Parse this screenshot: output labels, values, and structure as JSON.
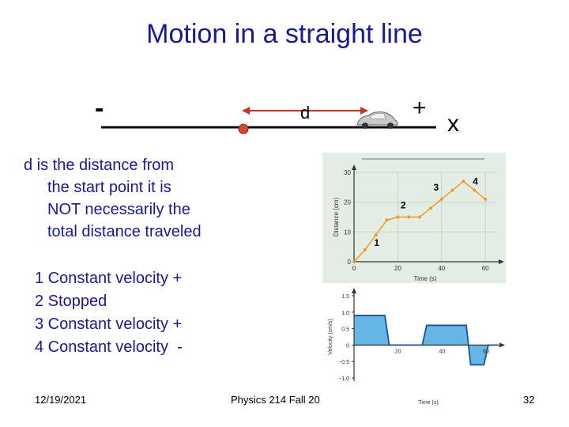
{
  "slide": {
    "title": "Motion in a straight line",
    "minus_sign": "-",
    "plus_sign": "+",
    "axis_label": "x",
    "displacement_label": "d",
    "description": [
      "d is the distance from",
      "the start point it is",
      "NOT necessarily the",
      "total distance traveled"
    ],
    "list": [
      "1 Constant velocity +",
      "2 Stopped",
      "3 Constant velocity +",
      "4 Constant velocity  -"
    ],
    "footer": {
      "date": "12/19/2021",
      "course": "Physics 214 Fall 20",
      "page": "32"
    }
  },
  "chart_data": [
    {
      "type": "line",
      "title": "",
      "xlabel": "Time (s)",
      "ylabel": "Distance (cm)",
      "xlim": [
        0,
        65
      ],
      "ylim": [
        0,
        30
      ],
      "xticks": [
        "0",
        "20",
        "40",
        "60"
      ],
      "yticks": [
        "0",
        "10",
        "20",
        "30"
      ],
      "x": [
        0,
        5,
        10,
        15,
        20,
        25,
        30,
        35,
        40,
        45,
        50,
        55,
        60
      ],
      "y": [
        0,
        4,
        9,
        14,
        15,
        15,
        15,
        18,
        21,
        24,
        27,
        24,
        21
      ],
      "annotations": [
        "1",
        "2",
        "3",
        "4"
      ],
      "color": "#ef9a2a"
    },
    {
      "type": "area",
      "title": "",
      "xlabel": "Time (s)",
      "ylabel": "Velocity (cm/s)",
      "xlim": [
        0,
        65
      ],
      "ylim": [
        -1.0,
        1.5
      ],
      "xticks": [
        "20",
        "40",
        "60"
      ],
      "yticks": [
        "1.5",
        "1.0",
        "0.5",
        "0",
        "−0.5",
        "−1.0"
      ],
      "x": [
        0,
        14,
        16,
        20,
        31,
        33,
        41,
        43,
        51,
        53,
        55,
        59,
        61,
        65
      ],
      "y": [
        0.9,
        0.9,
        0.0,
        0.0,
        0.0,
        0.6,
        0.6,
        0.6,
        0.6,
        -0.6,
        -0.6,
        -0.6,
        0.0,
        0.0
      ],
      "color": "#1f4f9e",
      "fill_color": "#4aa8e0"
    }
  ]
}
